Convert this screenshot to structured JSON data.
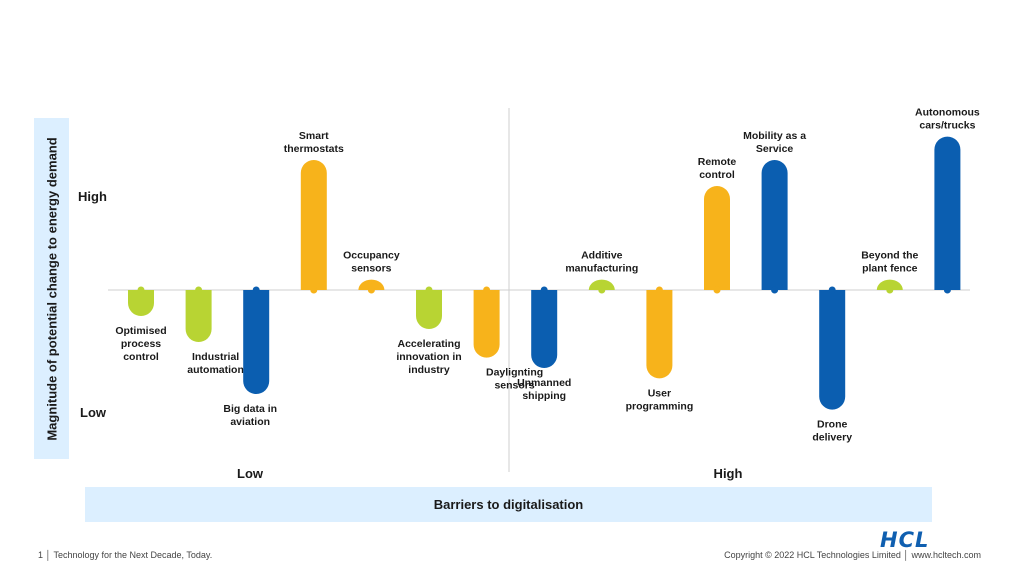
{
  "chart_data": {
    "type": "bar",
    "xlabel": "Barriers to digitalisation",
    "ylabel": "Magnitude of potential change to energy demand",
    "yticks": [
      "High",
      "Low"
    ],
    "xticks": [
      "Low",
      "High"
    ],
    "ylim": [
      -10,
      12
    ],
    "series_colors": {
      "green": "#b8d433",
      "orange": "#f7b31b",
      "blue": "#0b5eb0"
    },
    "bars": [
      {
        "label": "Optimised process control",
        "value": -1,
        "color": "green"
      },
      {
        "label": "Industrial automation",
        "value": -2,
        "color": "green"
      },
      {
        "label": "Big data in aviation",
        "value": -4,
        "color": "blue"
      },
      {
        "label": "Smart thermostats",
        "value": 5,
        "color": "orange"
      },
      {
        "label": "Occupancy sensors",
        "value": 0.4,
        "color": "orange"
      },
      {
        "label": "Accelerating innovation in industry",
        "value": -1.5,
        "color": "green"
      },
      {
        "label": "Daylignting sensors",
        "value": -2.6,
        "color": "orange"
      },
      {
        "label": "Unmanned shipping",
        "value": -3,
        "color": "blue"
      },
      {
        "label": "Additive manufacturing",
        "value": 0.4,
        "color": "green"
      },
      {
        "label": "User programming",
        "value": -3.4,
        "color": "orange"
      },
      {
        "label": "Remote control",
        "value": 4,
        "color": "orange"
      },
      {
        "label": "Mobility as a Service",
        "value": 5,
        "color": "blue"
      },
      {
        "label": "Drone delivery",
        "value": -4.6,
        "color": "blue"
      },
      {
        "label": "Beyond the plant fence",
        "value": 0.4,
        "color": "green"
      },
      {
        "label": "Autonomous cars/trucks",
        "value": 5.9,
        "color": "blue"
      }
    ]
  },
  "footer": {
    "left": "1 │ Technology for the Next Decade, Today.",
    "right": "Copyright © 2022 HCL Technologies Limited │ www.hcltech.com",
    "logo": "HCL"
  }
}
